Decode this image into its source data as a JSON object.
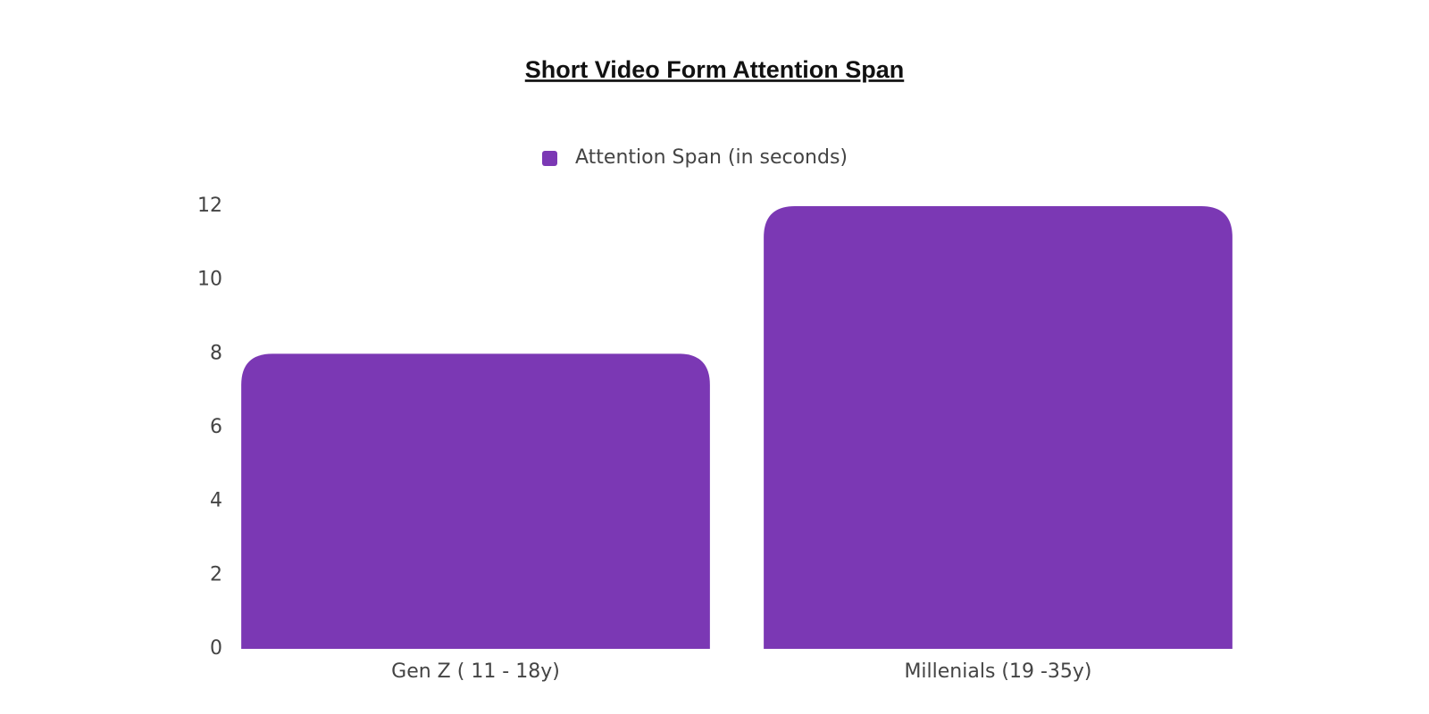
{
  "chart_data": {
    "type": "bar",
    "title": "Short Video Form Attention Span",
    "categories": [
      "Gen Z ( 11 - 18y)",
      "Millenials (19 -35y)"
    ],
    "series": [
      {
        "name": "Attention Span (in seconds)",
        "color": "#7b38b4",
        "values": [
          8,
          12
        ]
      }
    ],
    "ylim": [
      0,
      12
    ],
    "yticks": [
      0,
      2,
      4,
      6,
      8,
      10,
      12
    ],
    "grid": false,
    "legend": "top"
  }
}
